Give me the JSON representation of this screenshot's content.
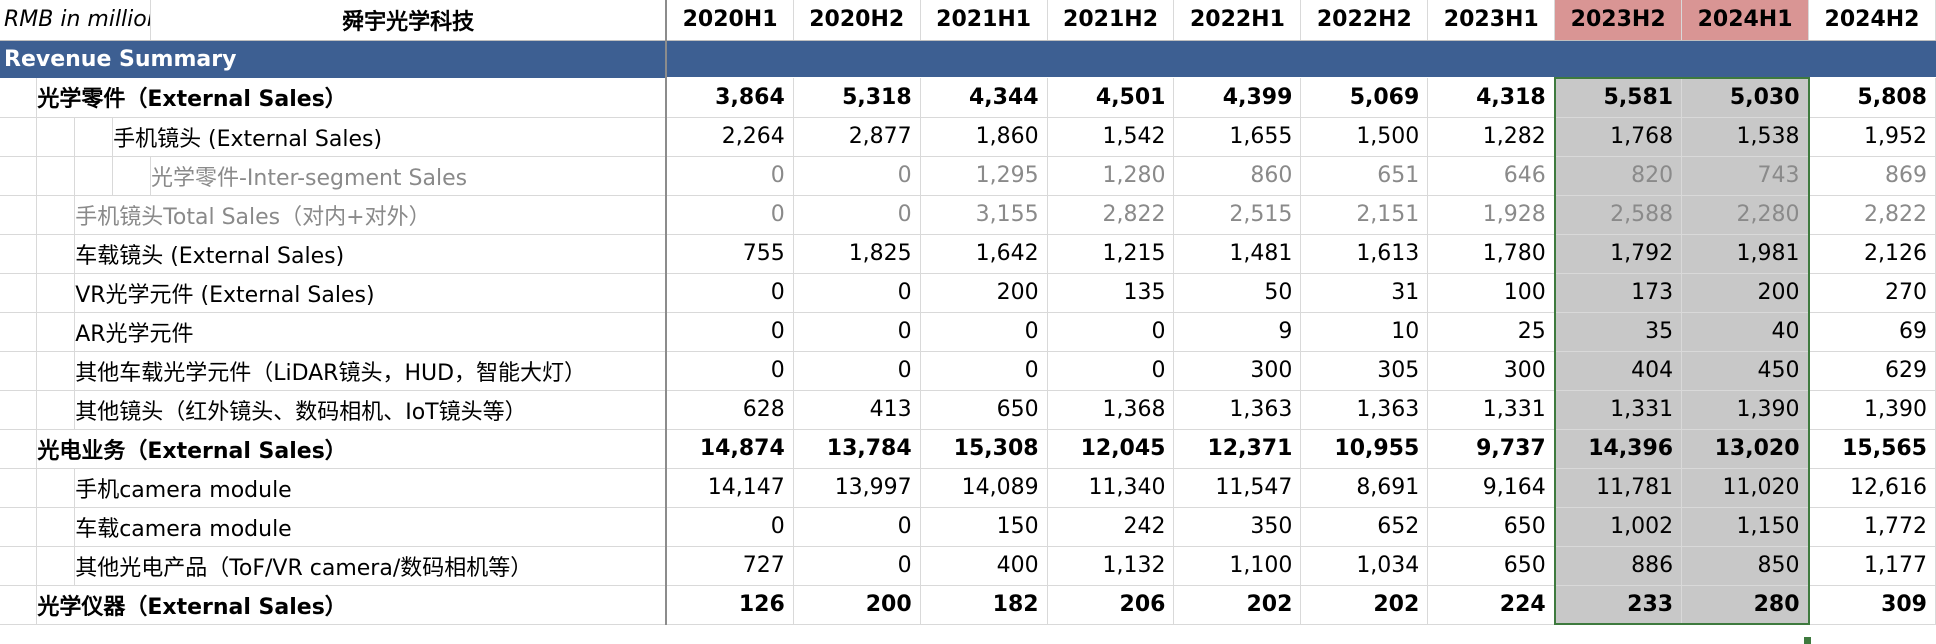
{
  "sheet": {
    "unit_label": "RMB in millions",
    "company": "舜宇光学科技",
    "periods": [
      "2020H1",
      "2020H2",
      "2021H1",
      "2021H2",
      "2022H1",
      "2022H2",
      "2023H1",
      "2023H2",
      "2024H1",
      "2024H2"
    ],
    "highlight_periods": [
      "2023H2",
      "2024H1"
    ],
    "section_title": "Revenue Summary",
    "colors": {
      "section_bg": "#3d5f92",
      "highlight_header": "#d99594",
      "highlight_cell": "#c8c8c8",
      "selection_border": "#3e7a3e"
    },
    "rows": [
      {
        "label": "光学零件（External Sales）",
        "indent": 1,
        "style": "bold",
        "values": [
          "3,864",
          "5,318",
          "4,344",
          "4,501",
          "4,399",
          "5,069",
          "4,318",
          "5,581",
          "5,030",
          "5,808"
        ]
      },
      {
        "label": "手机镜头 (External Sales)",
        "indent": 3,
        "style": "normal",
        "values": [
          "2,264",
          "2,877",
          "1,860",
          "1,542",
          "1,655",
          "1,500",
          "1,282",
          "1,768",
          "1,538",
          "1,952"
        ]
      },
      {
        "label": "光学零件-Inter-segment Sales",
        "indent": 4,
        "style": "gray",
        "values": [
          "0",
          "0",
          "1,295",
          "1,280",
          "860",
          "651",
          "646",
          "820",
          "743",
          "869"
        ]
      },
      {
        "label": "手机镜头Total Sales（对内+对外）",
        "indent": 2,
        "style": "gray",
        "values": [
          "0",
          "0",
          "3,155",
          "2,822",
          "2,515",
          "2,151",
          "1,928",
          "2,588",
          "2,280",
          "2,822"
        ]
      },
      {
        "label": "车载镜头 (External Sales)",
        "indent": 2,
        "style": "normal",
        "values": [
          "755",
          "1,825",
          "1,642",
          "1,215",
          "1,481",
          "1,613",
          "1,780",
          "1,792",
          "1,981",
          "2,126"
        ]
      },
      {
        "label": "VR光学元件 (External Sales)",
        "indent": 2,
        "style": "normal",
        "values": [
          "0",
          "0",
          "200",
          "135",
          "50",
          "31",
          "100",
          "173",
          "200",
          "270"
        ]
      },
      {
        "label": "AR光学元件",
        "indent": 2,
        "style": "normal",
        "values": [
          "0",
          "0",
          "0",
          "0",
          "9",
          "10",
          "25",
          "35",
          "40",
          "69"
        ]
      },
      {
        "label": "其他车载光学元件（LiDAR镜头，HUD，智能大灯）",
        "indent": 2,
        "style": "normal",
        "values": [
          "0",
          "0",
          "0",
          "0",
          "300",
          "305",
          "300",
          "404",
          "450",
          "629"
        ]
      },
      {
        "label": "其他镜头（红外镜头、数码相机、IoT镜头等）",
        "indent": 2,
        "style": "normal",
        "values": [
          "628",
          "413",
          "650",
          "1,368",
          "1,363",
          "1,363",
          "1,331",
          "1,331",
          "1,390",
          "1,390"
        ]
      },
      {
        "label": "光电业务（External Sales）",
        "indent": 1,
        "style": "bold",
        "values": [
          "14,874",
          "13,784",
          "15,308",
          "12,045",
          "12,371",
          "10,955",
          "9,737",
          "14,396",
          "13,020",
          "15,565"
        ]
      },
      {
        "label": "手机camera module",
        "indent": 2,
        "style": "normal",
        "values": [
          "14,147",
          "13,997",
          "14,089",
          "11,340",
          "11,547",
          "8,691",
          "9,164",
          "11,781",
          "11,020",
          "12,616"
        ]
      },
      {
        "label": "车载camera module",
        "indent": 2,
        "style": "normal",
        "values": [
          "0",
          "0",
          "150",
          "242",
          "350",
          "652",
          "650",
          "1,002",
          "1,150",
          "1,772"
        ]
      },
      {
        "label": "其他光电产品（ToF/VR camera/数码相机等）",
        "indent": 2,
        "style": "normal",
        "values": [
          "727",
          "0",
          "400",
          "1,132",
          "1,100",
          "1,034",
          "650",
          "886",
          "850",
          "1,177"
        ]
      },
      {
        "label": "光学仪器（External Sales）",
        "indent": 1,
        "style": "bold",
        "values": [
          "126",
          "200",
          "182",
          "206",
          "202",
          "202",
          "224",
          "233",
          "280",
          "309"
        ]
      }
    ]
  }
}
